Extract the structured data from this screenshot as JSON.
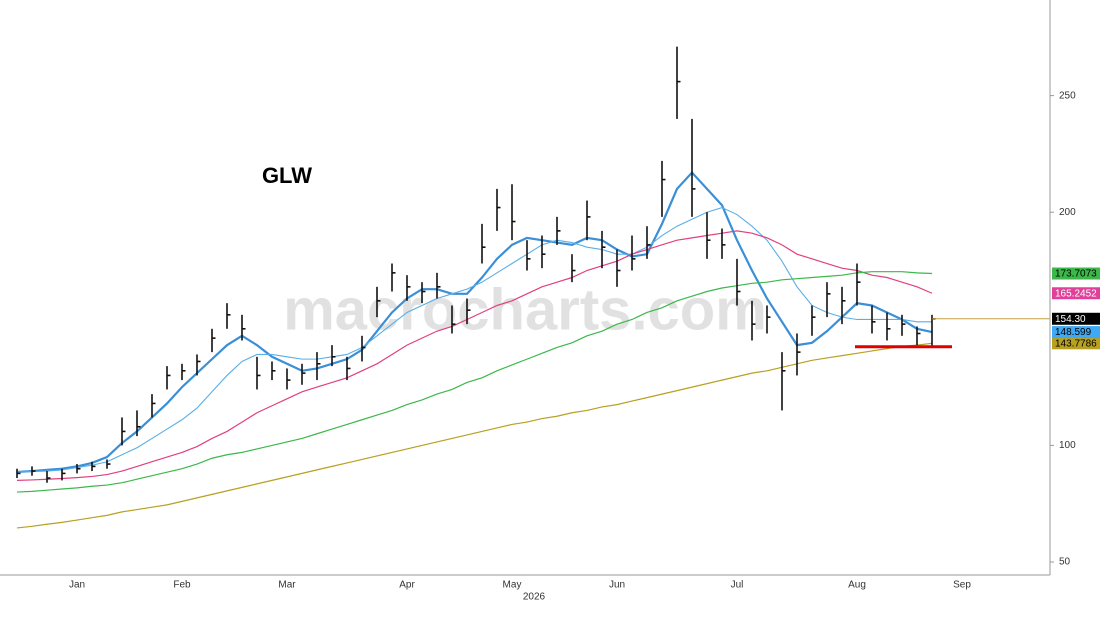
{
  "chart_data": {
    "type": "ohlc",
    "title": "GLW",
    "watermark": "macrocharts.com",
    "year_label": "2026",
    "categories": [
      null,
      null,
      null,
      null,
      "Jan",
      null,
      null,
      null,
      null,
      null,
      null,
      "Feb",
      null,
      null,
      null,
      null,
      null,
      null,
      "Mar",
      null,
      null,
      null,
      null,
      null,
      null,
      null,
      "Apr",
      null,
      null,
      null,
      null,
      null,
      null,
      "May",
      null,
      null,
      null,
      null,
      null,
      null,
      "Jun",
      null,
      null,
      null,
      null,
      null,
      null,
      null,
      "Jul",
      null,
      null,
      null,
      null,
      null,
      null,
      null,
      "Aug",
      null,
      null,
      null,
      null,
      null,
      null,
      "Sep"
    ],
    "price": {
      "color": "#111111",
      "high": [
        90,
        91,
        89,
        90,
        92,
        93,
        94,
        112,
        115,
        122,
        134,
        135,
        139,
        150,
        161,
        156,
        138,
        136,
        133,
        135,
        140,
        143,
        138,
        147,
        168,
        178,
        173,
        170,
        174,
        160,
        163,
        195,
        210,
        212,
        188,
        190,
        198,
        182,
        205,
        192,
        184,
        190,
        194,
        222,
        271,
        240,
        200,
        193,
        180,
        162,
        160,
        140,
        148,
        160,
        170,
        168,
        178,
        160,
        157,
        156,
        151,
        156,
        null,
        null
      ],
      "low": [
        86,
        87,
        84,
        85,
        88,
        89,
        90,
        100,
        104,
        112,
        124,
        128,
        130,
        140,
        150,
        145,
        124,
        128,
        124,
        126,
        128,
        134,
        128,
        136,
        155,
        166,
        162,
        161,
        163,
        148,
        152,
        178,
        192,
        188,
        175,
        176,
        186,
        170,
        188,
        176,
        168,
        175,
        180,
        198,
        240,
        198,
        180,
        180,
        160,
        145,
        148,
        115,
        130,
        147,
        155,
        152,
        160,
        148,
        145,
        147,
        143,
        142,
        null,
        null
      ],
      "values": [
        88,
        89,
        86,
        88,
        90,
        91,
        92,
        106,
        108,
        118,
        130,
        132,
        136,
        146,
        156,
        150,
        130,
        132,
        128,
        131,
        135,
        138,
        133,
        142,
        162,
        174,
        168,
        166,
        168,
        152,
        158,
        185,
        202,
        196,
        180,
        182,
        192,
        175,
        198,
        185,
        175,
        180,
        186,
        214,
        256,
        210,
        188,
        186,
        166,
        152,
        155,
        132,
        140,
        155,
        165,
        162,
        170,
        153,
        150,
        152,
        148,
        154.3,
        null,
        null
      ],
      "value_labels": [
        null,
        null,
        null,
        null,
        null,
        null,
        null,
        null,
        null,
        null,
        null,
        null,
        null,
        null,
        null,
        null,
        null,
        null,
        null,
        null,
        null,
        null,
        null,
        null,
        null,
        null,
        null,
        null,
        null,
        null,
        null,
        null,
        null,
        null,
        null,
        null,
        null,
        null,
        null,
        null,
        null,
        null,
        null,
        null,
        null,
        null,
        null,
        null,
        null,
        null,
        null,
        null,
        null,
        null,
        null,
        null,
        null,
        null,
        null,
        null,
        null,
        "154.30",
        null,
        null
      ],
      "tag_color": "#000000"
    },
    "series": [
      {
        "color": "#3a8fd6",
        "width": 2.2,
        "tag_color": "#3fa9f5",
        "values": [
          88.6,
          89,
          89.5,
          90,
          91,
          92.5,
          95,
          101,
          106,
          112,
          118,
          125,
          131,
          137,
          143,
          147,
          143,
          138,
          135,
          132,
          133,
          135,
          137,
          141,
          149,
          157,
          163,
          167,
          167,
          165,
          165,
          172,
          180,
          186,
          189,
          188,
          187,
          186,
          189,
          188,
          184,
          181,
          182,
          195,
          210,
          217,
          210,
          203,
          188,
          175,
          163,
          153,
          143,
          144,
          149,
          155,
          161,
          160,
          157,
          154,
          150,
          148.599,
          null,
          null
        ]
      },
      {
        "color": "#5aaee8",
        "width": 1.1,
        "tag_color": "#3fa9f5",
        "values": [
          88.6,
          88.8,
          89,
          89.5,
          90.5,
          91.5,
          93,
          96,
          99,
          103,
          107,
          111,
          116,
          123,
          130,
          136,
          139,
          139,
          138,
          137,
          137,
          138,
          139,
          142,
          147,
          152,
          157,
          160,
          163,
          165,
          167,
          170,
          174,
          178,
          182,
          186,
          188,
          187,
          185,
          184,
          182,
          182,
          185,
          190,
          194,
          197,
          200,
          202,
          199,
          194,
          188,
          179,
          168,
          160,
          157,
          155,
          154,
          154,
          154,
          154,
          153,
          153,
          null,
          null
        ]
      },
      {
        "color": "#e0407f",
        "width": 1.2,
        "tag_color": "#e0409a",
        "values": [
          85,
          85.2,
          85.5,
          85.8,
          86.2,
          86.7,
          87.5,
          89,
          91,
          93,
          95,
          97,
          99.5,
          103,
          106,
          110,
          114,
          117,
          120,
          123,
          125,
          127,
          129,
          132,
          135,
          139,
          143,
          146,
          149,
          151,
          154,
          157,
          160,
          162,
          165,
          168,
          170,
          172,
          175,
          177,
          179,
          182,
          184,
          186,
          188,
          189,
          190,
          191,
          192,
          191,
          189,
          186,
          182,
          180,
          178,
          176,
          175,
          173,
          172,
          170,
          168,
          165.2452,
          null,
          null
        ]
      },
      {
        "color": "#3cb84a",
        "width": 1.2,
        "tag_color": "#3cb84a",
        "values": [
          80,
          80.3,
          80.8,
          81.3,
          81.8,
          82.5,
          83,
          84,
          85.5,
          87,
          88.5,
          90,
          92,
          94.5,
          96,
          97,
          98.5,
          100,
          101.5,
          103,
          105,
          107,
          109,
          111,
          113,
          115,
          117.5,
          119.5,
          122,
          124,
          127,
          129,
          132,
          134.5,
          137,
          139.5,
          142,
          144,
          147,
          149,
          152,
          154,
          157,
          159,
          162,
          164,
          166,
          167.5,
          168.5,
          169.5,
          170,
          171,
          171.5,
          172,
          172.5,
          173,
          174,
          174.5,
          174.5,
          174.5,
          174,
          173.7073,
          null,
          null
        ]
      },
      {
        "color": "#b8a020",
        "width": 1.2,
        "tag_color": "#b8a020",
        "values": [
          64.6,
          65.3,
          66.2,
          67,
          68,
          69,
          70,
          71.5,
          72.5,
          73.5,
          74.5,
          76,
          77.5,
          79,
          80.5,
          82,
          83.5,
          85,
          86.5,
          88,
          89.5,
          91,
          92.5,
          94,
          95.5,
          97,
          98.5,
          100,
          101.5,
          103,
          104.5,
          106,
          107.5,
          109,
          110,
          111.5,
          112.5,
          114,
          115,
          116.5,
          117.5,
          119,
          120.5,
          122,
          123.5,
          125,
          126.5,
          128,
          129.5,
          131,
          132,
          133.5,
          135,
          136.5,
          137.5,
          138.5,
          139.5,
          140.5,
          141.5,
          142.5,
          143,
          143.7786,
          null,
          null
        ]
      }
    ],
    "support": {
      "value": 142.3,
      "color": "#e00000"
    },
    "last_price_line_color": "#c8a040",
    "ylim": [
      44,
      291
    ],
    "yticks": [
      50,
      100,
      200,
      250
    ]
  }
}
